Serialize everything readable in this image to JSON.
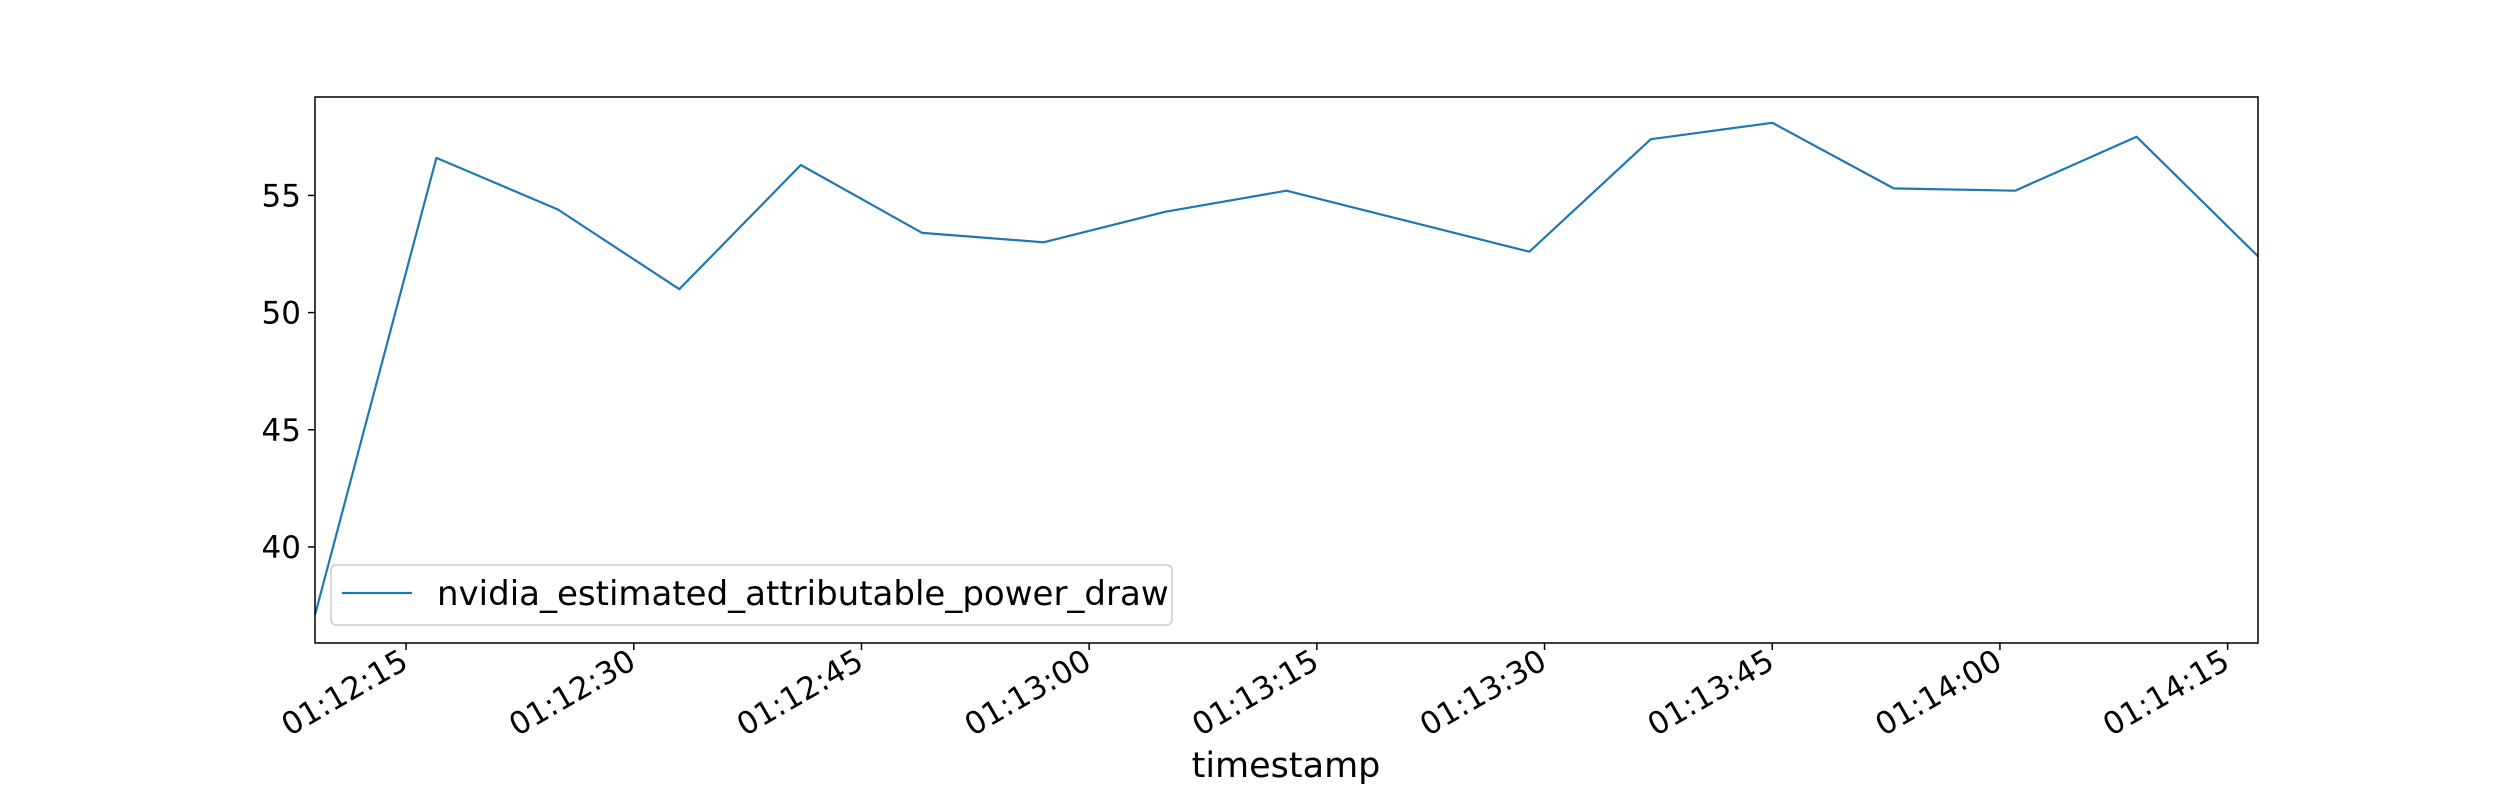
{
  "chart_data": {
    "type": "line",
    "title": "",
    "xlabel": "timestamp",
    "ylabel": "",
    "x": [
      "01:12:09",
      "01:12:17",
      "01:12:25",
      "01:12:33",
      "01:12:41",
      "01:12:49",
      "01:12:57",
      "01:13:05",
      "01:13:13",
      "01:13:21",
      "01:13:29",
      "01:13:37",
      "01:13:45",
      "01:13:53",
      "01:14:01",
      "01:14:09",
      "01:14:17"
    ],
    "series": [
      {
        "name": "nvidia_estimated_attributable_power_draw",
        "color": "#1f77b4",
        "values": [
          37.1,
          56.6,
          54.4,
          51.0,
          56.3,
          53.4,
          53.0,
          54.3,
          55.2,
          53.9,
          52.6,
          57.4,
          58.1,
          55.3,
          55.2,
          57.5,
          52.4
        ]
      }
    ],
    "x_tick_labels": [
      "01:12:15",
      "01:12:30",
      "01:12:45",
      "01:13:00",
      "01:13:15",
      "01:13:30",
      "01:13:45",
      "01:14:00",
      "01:14:15"
    ],
    "y_ticks": [
      40,
      45,
      50,
      55
    ],
    "xlim": [
      "01:12:09",
      "01:14:17"
    ],
    "ylim": [
      35.9,
      59.2
    ],
    "grid": false,
    "legend_position": "lower-left"
  }
}
